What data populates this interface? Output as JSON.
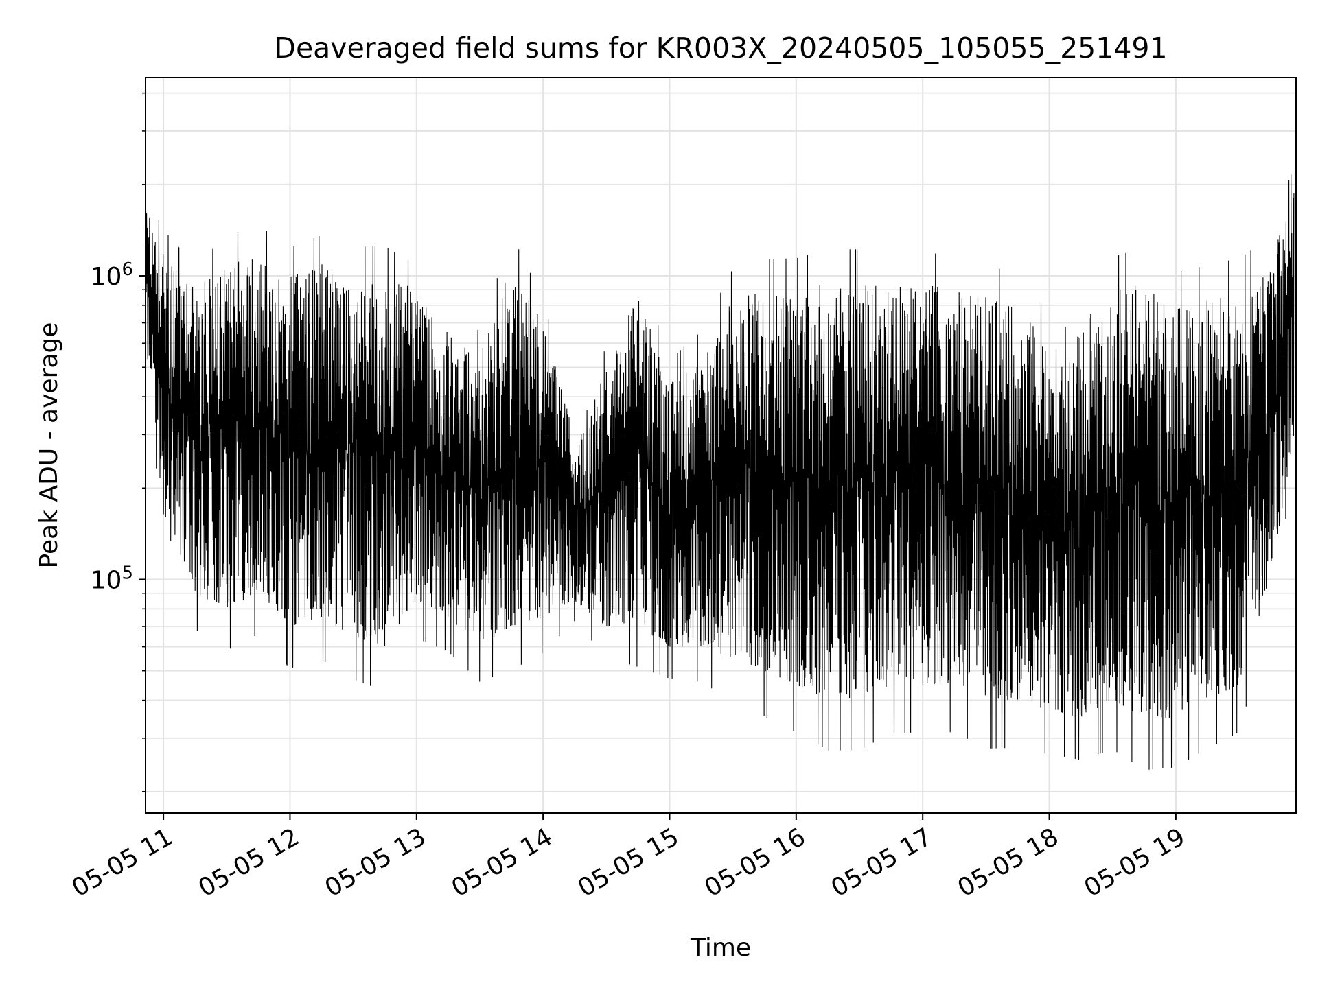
{
  "chart_data": {
    "type": "line",
    "title": "Deaveraged field sums for KR003X_20240505_105055_251491",
    "xlabel": "Time",
    "ylabel": "Peak ADU - average",
    "yscale": "log",
    "ylim": [
      17000,
      4500000
    ],
    "xlim": [
      "2024-05-05T10:51:30",
      "2024-05-05T19:57:00"
    ],
    "x_ticks": [
      {
        "value": "2024-05-05T11:00:00",
        "label": "05-05 11"
      },
      {
        "value": "2024-05-05T12:00:00",
        "label": "05-05 12"
      },
      {
        "value": "2024-05-05T13:00:00",
        "label": "05-05 13"
      },
      {
        "value": "2024-05-05T14:00:00",
        "label": "05-05 14"
      },
      {
        "value": "2024-05-05T15:00:00",
        "label": "05-05 15"
      },
      {
        "value": "2024-05-05T16:00:00",
        "label": "05-05 16"
      },
      {
        "value": "2024-05-05T17:00:00",
        "label": "05-05 17"
      },
      {
        "value": "2024-05-05T18:00:00",
        "label": "05-05 18"
      },
      {
        "value": "2024-05-05T19:00:00",
        "label": "05-05 19"
      }
    ],
    "y_ticks": [
      {
        "value": 100000,
        "base": "10",
        "exp": "5"
      },
      {
        "value": 1000000,
        "base": "10",
        "exp": "6"
      }
    ],
    "grid": true,
    "line_color": "#000000",
    "series": [
      {
        "x": [
          "2024-05-05T10:51",
          "2024-05-05T11:00",
          "2024-05-05T11:15",
          "2024-05-05T11:30",
          "2024-05-05T11:45",
          "2024-05-05T12:00",
          "2024-05-05T12:15",
          "2024-05-05T12:30",
          "2024-05-05T12:45",
          "2024-05-05T13:00",
          "2024-05-05T13:15",
          "2024-05-05T13:30",
          "2024-05-05T13:45",
          "2024-05-05T14:00",
          "2024-05-05T14:15",
          "2024-05-05T14:30",
          "2024-05-05T14:45",
          "2024-05-05T15:00",
          "2024-05-05T15:15",
          "2024-05-05T15:30",
          "2024-05-05T15:45",
          "2024-05-05T16:00",
          "2024-05-05T16:15",
          "2024-05-05T16:30",
          "2024-05-05T16:45",
          "2024-05-05T17:00",
          "2024-05-05T17:15",
          "2024-05-05T17:30",
          "2024-05-05T17:45",
          "2024-05-05T18:00",
          "2024-05-05T18:15",
          "2024-05-05T18:30",
          "2024-05-05T18:45",
          "2024-05-05T19:00",
          "2024-05-05T19:15",
          "2024-05-05T19:30",
          "2024-05-05T19:45",
          "2024-05-05T19:56"
        ],
        "low": [
          800000,
          150000,
          90000,
          80000,
          90000,
          70000,
          75000,
          65000,
          60000,
          85000,
          75000,
          60000,
          70000,
          75000,
          85000,
          70000,
          70000,
          60000,
          60000,
          55000,
          50000,
          45000,
          40000,
          40000,
          45000,
          45000,
          45000,
          40000,
          40000,
          37000,
          35000,
          40000,
          35000,
          35000,
          40000,
          45000,
          100000,
          300000
        ],
        "high": [
          1800000,
          1200000,
          900000,
          1100000,
          1200000,
          1000000,
          1100000,
          1000000,
          1000000,
          900000,
          650000,
          550000,
          1100000,
          700000,
          300000,
          500000,
          900000,
          450000,
          550000,
          850000,
          900000,
          900000,
          950000,
          950000,
          950000,
          950000,
          900000,
          850000,
          800000,
          600000,
          500000,
          900000,
          950000,
          800000,
          850000,
          900000,
          1100000,
          2000000
        ]
      }
    ]
  }
}
